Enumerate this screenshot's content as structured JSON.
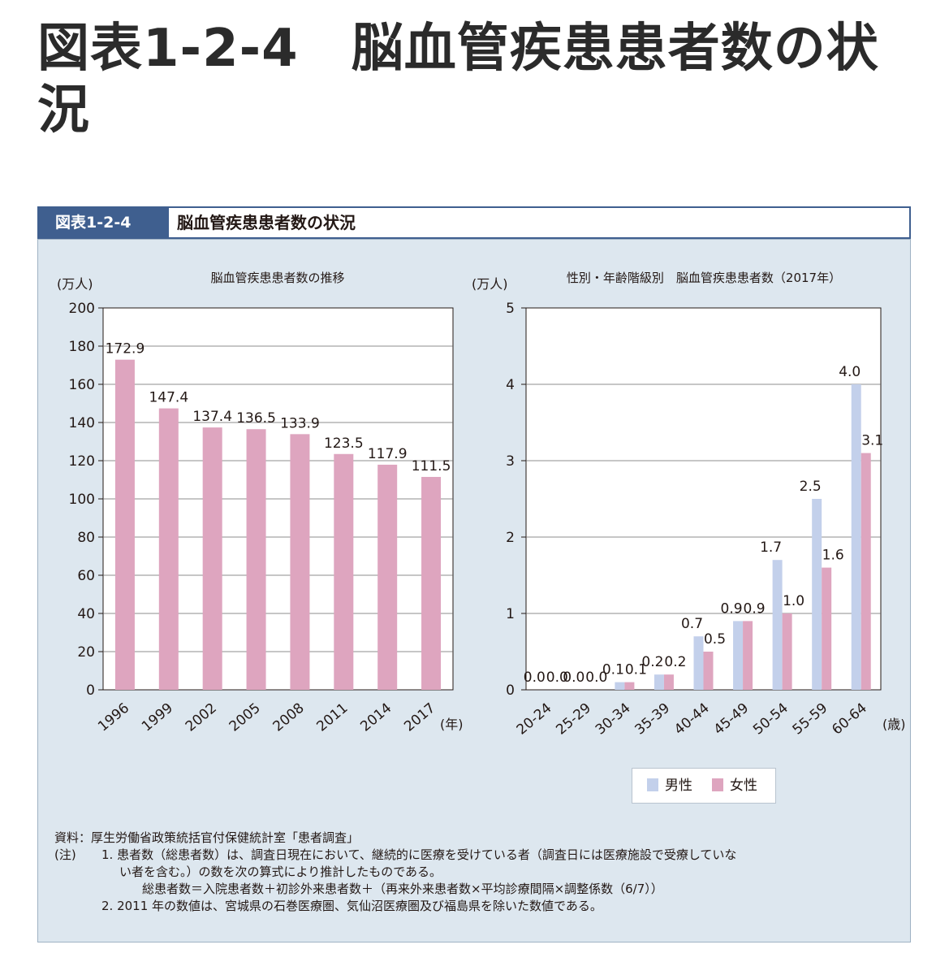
{
  "page_title": "図表1-2-4　脳血管疾患患者数の状況",
  "figure": {
    "label": "図表1-2-4",
    "title": "脳血管疾患患者数の状況"
  },
  "colors": {
    "female": "#dea5bf",
    "male": "#c3d0eb",
    "panel_bg": "#dde7ef",
    "header_blue": "#3f5f8f"
  },
  "chart_data": [
    {
      "type": "bar",
      "title": "脳血管疾患患者数の推移",
      "ylabel": "(万人)",
      "xunit": "(年)",
      "categories": [
        "1996",
        "1999",
        "2002",
        "2005",
        "2008",
        "2011",
        "2014",
        "2017"
      ],
      "values": [
        172.9,
        147.4,
        137.4,
        136.5,
        133.9,
        123.5,
        117.9,
        111.5
      ],
      "value_labels": [
        "172.9",
        "147.4",
        "137.4",
        "136.5",
        "133.9",
        "123.5",
        "117.9",
        "111.5"
      ],
      "ylim": [
        0,
        200
      ],
      "yticks": [
        "0",
        "20",
        "40",
        "60",
        "80",
        "100",
        "120",
        "140",
        "160",
        "180",
        "200"
      ],
      "grid": true
    },
    {
      "type": "bar",
      "title": "性別・年齢階級別　脳血管疾患患者数（2017年）",
      "ylabel": "(万人)",
      "xunit": "(歳)",
      "categories": [
        "20-24",
        "25-29",
        "30-34",
        "35-39",
        "40-44",
        "45-49",
        "50-54",
        "55-59",
        "60-64"
      ],
      "series": [
        {
          "name": "男性",
          "values": [
            0.0,
            0.0,
            0.1,
            0.2,
            0.7,
            0.9,
            1.7,
            2.5,
            4.0
          ],
          "value_labels": [
            "0.0",
            "0.0",
            "0.1",
            "0.2",
            "0.7",
            "0.9",
            "1.7",
            "2.5",
            "4.0"
          ]
        },
        {
          "name": "女性",
          "values": [
            0.0,
            0.0,
            0.1,
            0.2,
            0.5,
            0.9,
            1.0,
            1.6,
            3.1
          ],
          "value_labels": [
            "0.0",
            "0.0",
            "0.1",
            "0.2",
            "0.5",
            "0.9",
            "1.0",
            "1.6",
            "3.1"
          ]
        }
      ],
      "ylim": [
        0,
        5
      ],
      "yticks": [
        "0",
        "1",
        "2",
        "3",
        "4",
        "5"
      ],
      "legend": "bottom-right",
      "grid": true
    }
  ],
  "notes": {
    "source": "資料：厚生労働省政策統括官付保健統計室「患者調査」",
    "note_label": "(注)",
    "note1_line1": "1.  患者数（総患者数）は、調査日現在において、継続的に医療を受けている者（調査日には医療施設で受療していな",
    "note1_line2": "い者を含む。）の数を次の算式により推計したものである。",
    "note1_formula": "総患者数＝入院患者数＋初診外来患者数＋（再来外来患者数×平均診療間隔×調整係数（6/7））",
    "note2": "2.  2011 年の数値は、宮城県の石巻医療圏、気仙沼医療圏及び福島県を除いた数値である。"
  }
}
